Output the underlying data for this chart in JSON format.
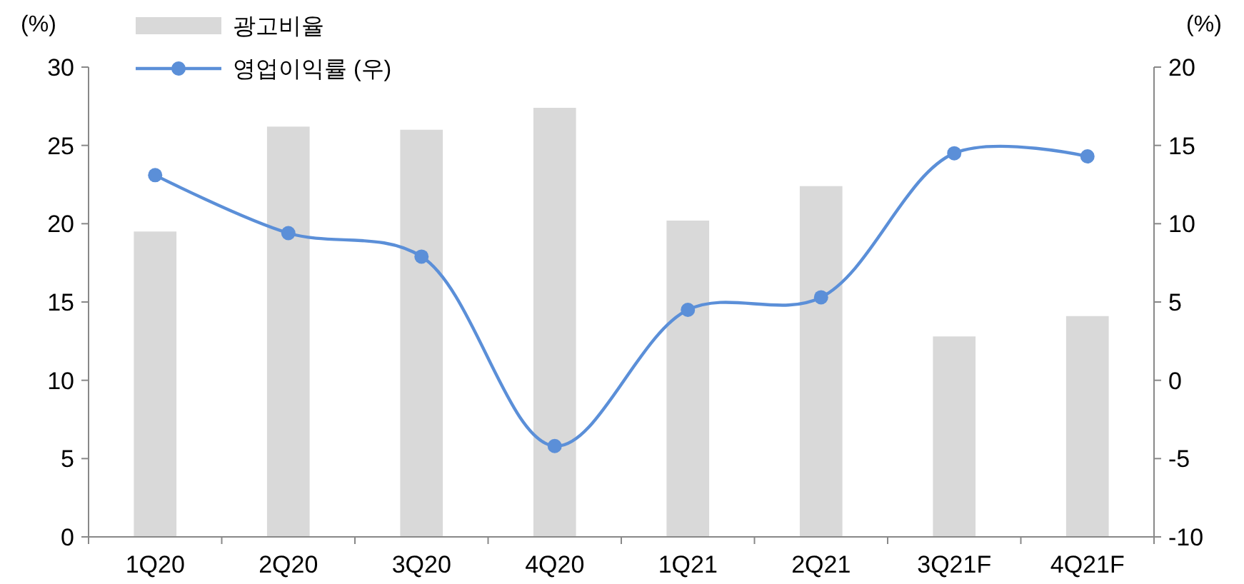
{
  "chart_data": {
    "type": "bar",
    "ylabel": "(%)",
    "y2label": "(%)",
    "categories": [
      "1Q20",
      "2Q20",
      "3Q20",
      "4Q20",
      "1Q21",
      "2Q21",
      "3Q21F",
      "4Q21F"
    ],
    "series": [
      {
        "name": "광고비율",
        "color": "#d9d9d9",
        "values": [
          19.5,
          26.2,
          26.0,
          27.4,
          20.2,
          22.4,
          12.8,
          14.1
        ]
      },
      {
        "name": "영업이익률 (우)",
        "type": "line",
        "axis": "y2",
        "color": "#5b8fd8",
        "values": [
          13.1,
          9.4,
          7.9,
          -4.2,
          4.5,
          5.3,
          14.5,
          14.3
        ]
      }
    ],
    "ylim": [
      0,
      30
    ],
    "yticks": [
      0,
      5,
      10,
      15,
      20,
      25,
      30
    ],
    "y2lim": [
      -10,
      20
    ],
    "y2ticks": [
      -10,
      -5,
      0,
      5,
      10,
      15,
      20
    ],
    "marker": "circle",
    "legend": "top left",
    "grid": false
  }
}
